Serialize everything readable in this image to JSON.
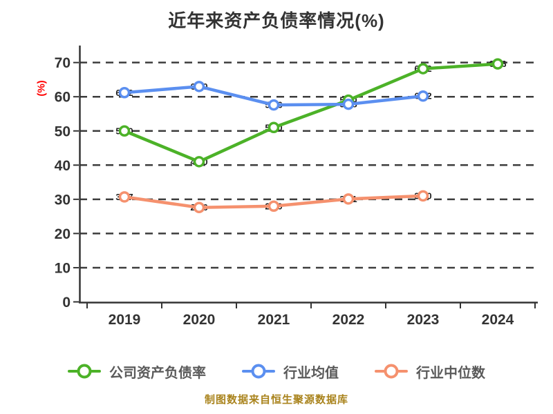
{
  "chart_data": {
    "type": "line",
    "title": "近年来资产负债率情况(%)",
    "ylabel": "(%)",
    "categories": [
      "2019",
      "2020",
      "2021",
      "2022",
      "2023",
      "2024"
    ],
    "series": [
      {
        "name": "公司资产负债率",
        "color": "#4CB228",
        "values": [
          50.0,
          41.0,
          51.0,
          59.0,
          68.2,
          69.6
        ]
      },
      {
        "name": "行业均值",
        "color": "#5B8FF0",
        "values": [
          61.2,
          63.0,
          57.6,
          57.8,
          60.2,
          null
        ]
      },
      {
        "name": "行业中位数",
        "color": "#F5916E",
        "values": [
          30.7,
          27.6,
          28.0,
          30.1,
          31.0,
          null
        ]
      }
    ],
    "ylim": [
      0,
      70
    ],
    "yticks": [
      0,
      10,
      20,
      30,
      40,
      50,
      60,
      70
    ],
    "grid": "horizontal-dashed",
    "legend_position": "bottom",
    "point_labels_visible": "numeric value drawn at each point, mostly hidden behind line strokes"
  },
  "footer": {
    "text": "制图数据来自恒生聚源数据库"
  },
  "colors": {
    "background": "#ffffff",
    "title": "#333333",
    "axis": "#333333",
    "grid": "#3c3c3c",
    "tick_label": "#333333",
    "ylabel": "#ff0000",
    "legend_text": "#5a5a5a",
    "footer_text": "#a9831c",
    "point_label": "#1a1a1a"
  }
}
